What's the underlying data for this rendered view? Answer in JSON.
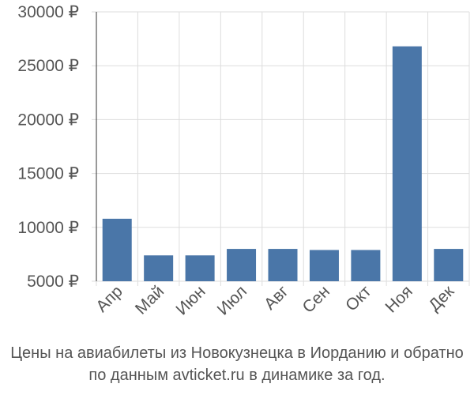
{
  "chart_data": {
    "type": "bar",
    "categories": [
      "Апр",
      "Май",
      "Июн",
      "Июл",
      "Авг",
      "Сен",
      "Окт",
      "Ноя",
      "Дек"
    ],
    "values": [
      10800,
      7400,
      7400,
      8000,
      8000,
      7900,
      7900,
      26800,
      8000
    ],
    "ylim": [
      5000,
      30000
    ],
    "yticks": [
      5000,
      10000,
      15000,
      20000,
      25000,
      30000
    ],
    "ytick_labels": [
      "5000 ₽",
      "10000 ₽",
      "15000 ₽",
      "20000 ₽",
      "25000 ₽",
      "30000 ₽"
    ],
    "grid": true,
    "bar_color": "#4a76a8",
    "grid_color": "#dddddd"
  },
  "caption": {
    "line1": "Цены на авиабилеты из Новокузнецка в Иорданию и обратно",
    "line2": "по данным avticket.ru в динамике за год."
  }
}
